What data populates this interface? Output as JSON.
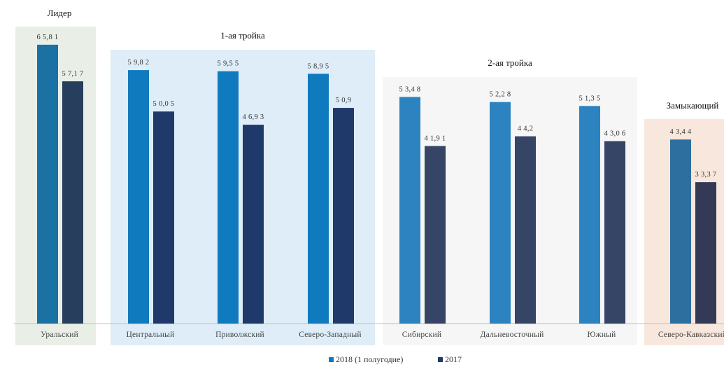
{
  "chart_data": {
    "type": "bar",
    "categories": [
      "Уральский",
      "Центральный",
      "Приволжский",
      "Северо-Западный",
      "Сибирский",
      "Дальневосточный",
      "Южный",
      "Северо-Кавказский"
    ],
    "series": [
      {
        "name": "2018 (1 полугодие)",
        "values": [
          65.81,
          59.82,
          59.55,
          58.95,
          53.48,
          52.28,
          51.35,
          43.44
        ],
        "labels": [
          "6 5,8 1",
          "5 9,8 2",
          "5 9,5 5",
          "5 8,9 5",
          "5 3,4 8",
          "5 2,2 8",
          "5 1,3 5",
          "4 3,4 4"
        ]
      },
      {
        "name": "2017",
        "values": [
          57.17,
          50.05,
          46.93,
          50.9,
          41.91,
          44.2,
          43.06,
          33.37
        ],
        "labels": [
          "5 7,1 7",
          "5 0,0 5",
          "4 6,9 3",
          "5 0,9",
          "4 1,9 1",
          "4 4,2",
          "4 3,0 6",
          "3 3,3 7"
        ]
      }
    ],
    "groups": [
      {
        "name": "Лидер",
        "categories": [
          "Уральский"
        ],
        "color": "#e9efe6"
      },
      {
        "name": "1-ая тройка",
        "categories": [
          "Центральный",
          "Приволжский",
          "Северо-Западный"
        ],
        "color": "#deedf7"
      },
      {
        "name": "2-ая тройка",
        "categories": [
          "Сибирский",
          "Дальневосточный",
          "Южный"
        ],
        "color": "#f6f6f6"
      },
      {
        "name": "Замыкающий",
        "categories": [
          "Северо-Кавказский"
        ],
        "color": "#f8e7dd"
      }
    ],
    "colors_2018": [
      "#1a72a4",
      "#107abf",
      "#107abf",
      "#107abf",
      "#2c83c0",
      "#2c83c0",
      "#2c83c0",
      "#2d6f9f"
    ],
    "colors_2017": [
      "#273e5c",
      "#1f3a6a",
      "#1f3a6a",
      "#1f3a6a",
      "#364466",
      "#364466",
      "#364466",
      "#343a56"
    ],
    "legend": {
      "position": "bottom-center",
      "items": [
        "2018 (1 полугодие)",
        "2017"
      ]
    },
    "ylim": [
      0,
      70
    ],
    "grid": false,
    "title": "",
    "xlabel": "",
    "ylabel": ""
  }
}
